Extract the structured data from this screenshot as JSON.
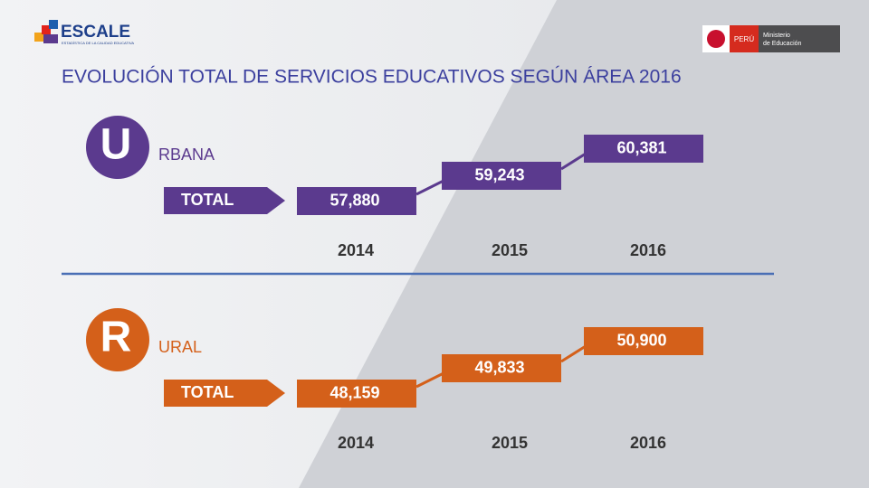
{
  "header": {
    "logo": "ESCALE",
    "logo_sub": "ESTADÍSTICA DE LA CALIDAD EDUCATIVA",
    "country": "PERÚ",
    "ministry_line1": "Ministerio",
    "ministry_line2": "de Educación"
  },
  "title": "EVOLUCIÓN TOTAL DE SERVICIOS EDUCATIVOS SEGÚN ÁREA 2016",
  "sections": [
    {
      "letter": "U",
      "word": "RBANA",
      "total_label": "TOTAL",
      "years": [
        "2014",
        "2015",
        "2016"
      ],
      "values": [
        "57,880",
        "59,243",
        "60,381"
      ]
    },
    {
      "letter": "R",
      "word": "URAL",
      "total_label": "TOTAL",
      "years": [
        "2014",
        "2015",
        "2016"
      ],
      "values": [
        "48,159",
        "49,833",
        "50,900"
      ]
    }
  ]
}
